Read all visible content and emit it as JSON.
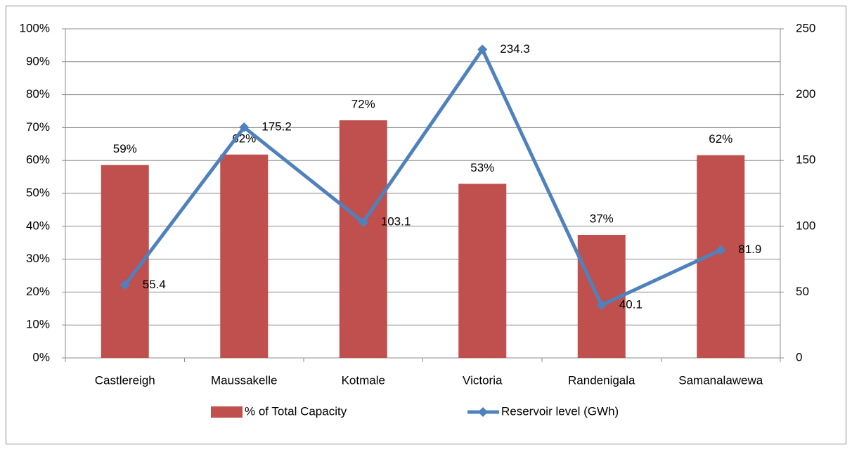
{
  "chart_data": {
    "type": "bar",
    "categories": [
      "Castlereigh",
      "Maussakelle",
      "Kotmale",
      "Victoria",
      "Randenigala",
      "Samanalawewa"
    ],
    "series": [
      {
        "name": "% of Total Capacity",
        "type": "bar",
        "color": "#c0504d",
        "values": [
          58.6,
          61.8,
          72.2,
          52.9,
          37.4,
          61.6
        ],
        "value_labels": [
          "59%",
          "62%",
          "72%",
          "53%",
          "37%",
          "62%"
        ]
      },
      {
        "name": "Reservoir level (GWh)",
        "type": "line",
        "axis": "y2",
        "color": "#4f81bd",
        "values": [
          55.4,
          175.2,
          103.1,
          234.3,
          40.1,
          81.9
        ]
      }
    ],
    "ylim": [
      0,
      100
    ],
    "yticks": [
      {
        "value": 0,
        "label": "0%"
      },
      {
        "value": 10,
        "label": "10%"
      },
      {
        "value": 20,
        "label": "20%"
      },
      {
        "value": 30,
        "label": "30%"
      },
      {
        "value": 40,
        "label": "40%"
      },
      {
        "value": 50,
        "label": "50%"
      },
      {
        "value": 60,
        "label": "60%"
      },
      {
        "value": 70,
        "label": "70%"
      },
      {
        "value": 80,
        "label": "80%"
      },
      {
        "value": 90,
        "label": "90%"
      },
      {
        "value": 100,
        "label": "100%"
      }
    ],
    "y2lim": [
      0,
      250
    ],
    "y2ticks": [
      0,
      50,
      100,
      150,
      200,
      250
    ],
    "grid": true,
    "legend": "bottom"
  }
}
